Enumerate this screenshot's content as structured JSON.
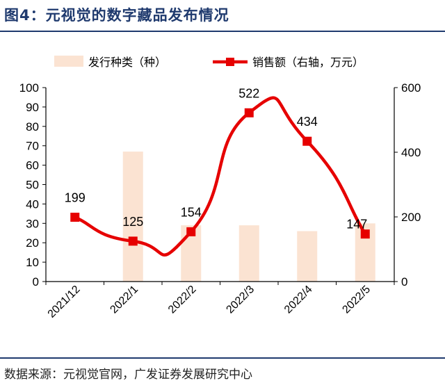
{
  "header": {
    "title": "图4：元视觉的数字藏品发布情况"
  },
  "footer": {
    "source": "数据来源：元视觉官网，广发证券发展研究中心"
  },
  "chart_data": {
    "type": "bar+line",
    "categories": [
      "2021/12",
      "2022/1",
      "2022/2",
      "2022/3",
      "2022/4",
      "2022/5"
    ],
    "series": [
      {
        "name": "发行种类（种）",
        "type": "bar",
        "axis": "left",
        "color": "#fbe3d2",
        "values": [
          0,
          67,
          29,
          29,
          26,
          30
        ]
      },
      {
        "name": "销售额（右轴，万元）",
        "type": "line",
        "axis": "right",
        "color": "#e60000",
        "values": [
          199,
          125,
          154,
          522,
          434,
          147
        ],
        "labels": [
          "199",
          "125",
          "154",
          "522",
          "434",
          "147"
        ]
      }
    ],
    "left_axis": {
      "min": 0,
      "max": 100,
      "ticks": [
        "0",
        "10",
        "20",
        "30",
        "40",
        "50",
        "60",
        "70",
        "80",
        "90",
        "100"
      ]
    },
    "right_axis": {
      "min": 0,
      "max": 600,
      "ticks": [
        "0",
        "200",
        "400",
        "600"
      ]
    }
  }
}
